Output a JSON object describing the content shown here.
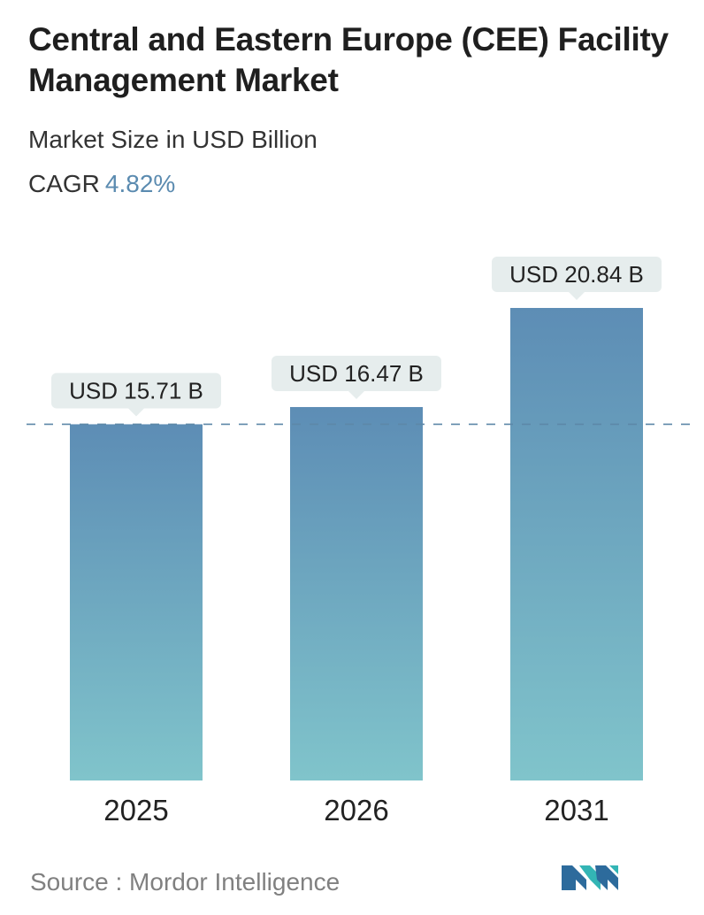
{
  "title": "Central and Eastern Europe (CEE) Facility Management Market",
  "subtitle": "Market Size in USD Billion",
  "cagr": {
    "label": "CAGR",
    "value": "4.82%"
  },
  "source": {
    "text": "Source :  Mordor Intelligence"
  },
  "logo": {
    "icon": "mordor-intelligence-logo-icon"
  },
  "colors": {
    "bar_top": "#5d8db5",
    "bar_bottom": "#80c4cb",
    "label_bg": "#e6eded",
    "dashed_line": "#5d88a8",
    "logo_dark": "#2d6b9c",
    "logo_light": "#33b5b5"
  },
  "chart_data": {
    "type": "bar",
    "categories": [
      "2025",
      "2026",
      "2031"
    ],
    "values": [
      15.71,
      16.47,
      20.84
    ],
    "value_labels": [
      "USD 15.71 B",
      "USD 16.47 B",
      "USD 20.84 B"
    ],
    "reference_line": 15.71,
    "grid": false,
    "legend": "none"
  }
}
